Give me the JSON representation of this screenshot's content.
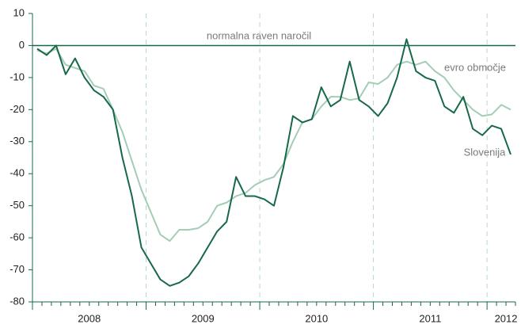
{
  "chart_data": {
    "type": "line",
    "categories": [
      null,
      null,
      null,
      null,
      null,
      null,
      "2008",
      null,
      null,
      null,
      null,
      null,
      null,
      null,
      null,
      null,
      null,
      null,
      "2009",
      null,
      null,
      null,
      null,
      null,
      null,
      null,
      null,
      null,
      null,
      null,
      "2010",
      null,
      null,
      null,
      null,
      null,
      null,
      null,
      null,
      null,
      null,
      null,
      "2011",
      null,
      null,
      null,
      null,
      null,
      null,
      null,
      "2012"
    ],
    "series": [
      {
        "name": "Slovenija",
        "color": "#17694a",
        "values": [
          -1,
          -3,
          0,
          -9,
          -4,
          -10,
          -14,
          -16,
          -20,
          -35,
          -47,
          -63,
          -68,
          -73,
          -75,
          -74,
          -72,
          -68,
          -63,
          -58,
          -55,
          -41,
          -47,
          -47,
          -48,
          -50,
          -38,
          -22,
          -24,
          -23,
          -13,
          -19,
          -17,
          -5,
          -17,
          -19,
          -22,
          -18,
          -10,
          2,
          -8,
          -10,
          -11,
          -19,
          -21,
          -16,
          -26,
          -28,
          -25,
          -26,
          -34
        ]
      },
      {
        "name": "evro območje",
        "color": "#a3cdb5",
        "values": [
          -1.5,
          -2.5,
          -1,
          -6,
          -7,
          -8,
          -12.5,
          -13.5,
          -20,
          -27,
          -36,
          -45,
          -52,
          -59,
          -61,
          -57.5,
          -57.5,
          -57,
          -55,
          -50,
          -49,
          -47,
          -46,
          -43.5,
          -42,
          -41,
          -37,
          -30,
          -24,
          -23,
          -19,
          -16,
          -16,
          -17,
          -16.5,
          -11.5,
          -12,
          -10,
          -6,
          -5,
          -6,
          -5,
          -8,
          -10,
          -14,
          -17,
          -20,
          -22,
          -21.5,
          -18.5,
          -20
        ]
      }
    ],
    "annotations": [
      "normalna raven naročil"
    ],
    "ylim": [
      -80,
      10
    ],
    "yticks": [
      -80,
      -70,
      -60,
      -50,
      -40,
      -30,
      -20,
      -10,
      0,
      10
    ]
  }
}
